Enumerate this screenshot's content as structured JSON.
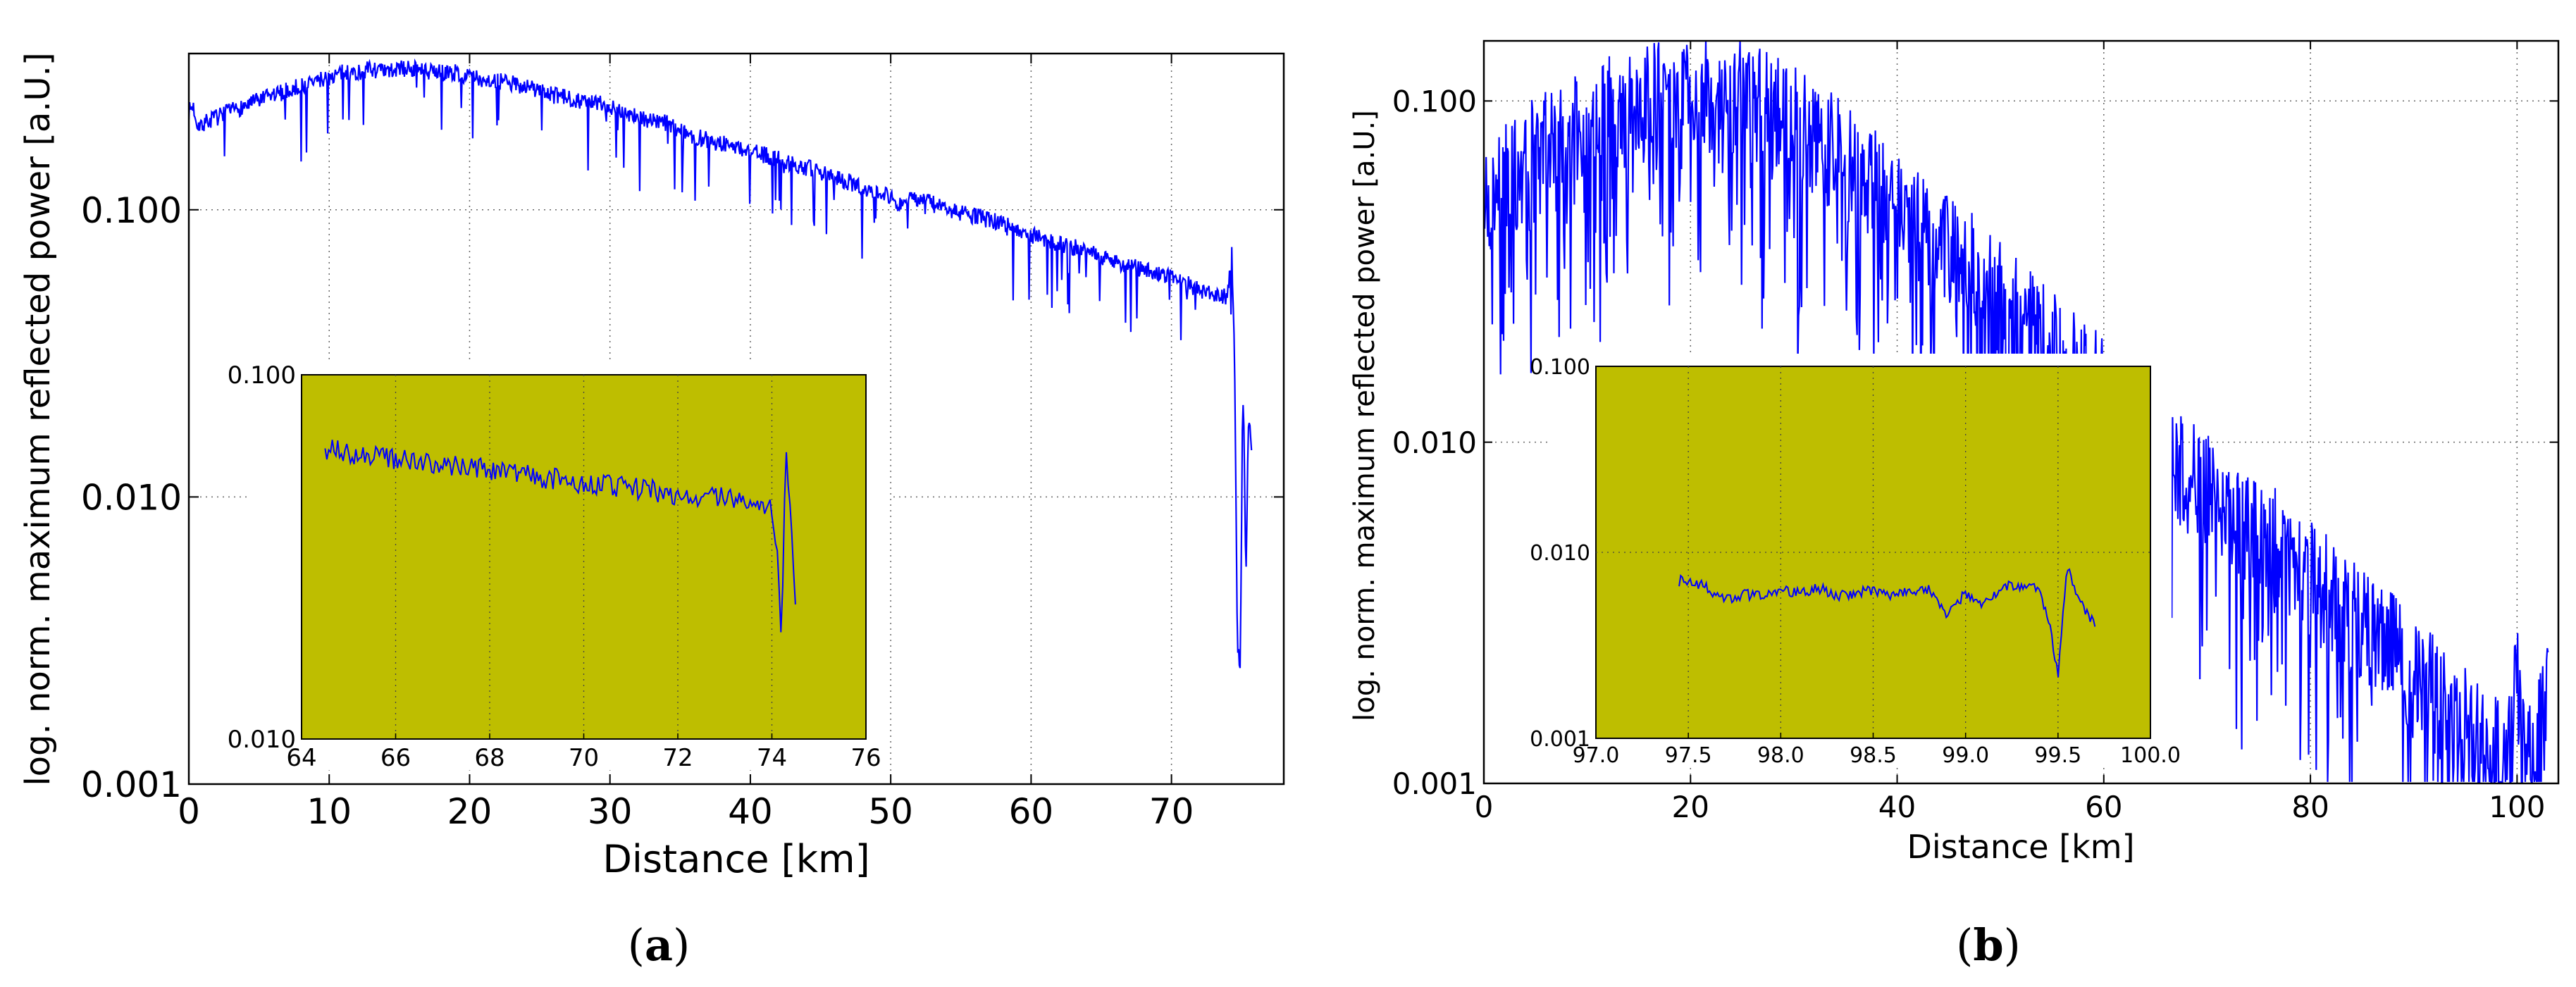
{
  "chart_data": [
    {
      "id": "a",
      "type": "line",
      "caption_letter": "a",
      "xlabel": "Distance [km]",
      "ylabel": "log. norm. maximum reflected power [a.U.]",
      "yscale": "log",
      "xlim": [
        0,
        78
      ],
      "ylim": [
        0.001,
        0.35
      ],
      "xticks": [
        0,
        10,
        20,
        30,
        40,
        50,
        60,
        70
      ],
      "xtick_labels": [
        "0",
        "10",
        "20",
        "30",
        "40",
        "50",
        "60",
        "70"
      ],
      "yticks": [
        0.001,
        0.01,
        0.1
      ],
      "ytick_labels": [
        "0.001",
        "0.010",
        "0.100"
      ],
      "grid": true,
      "line_color": "#0000ff",
      "series": [
        {
          "name": "trace",
          "x": [
            0,
            0.3,
            0.6,
            1,
            2,
            3,
            4,
            5,
            6,
            7,
            8,
            9,
            10,
            11,
            12,
            13,
            14,
            15,
            16,
            17,
            18,
            19,
            20,
            22,
            24,
            26,
            28,
            30,
            32,
            34,
            36,
            38,
            40,
            42,
            44,
            46,
            48,
            49.5,
            50.5,
            52,
            54,
            56,
            58,
            60,
            62,
            64,
            66,
            68,
            70,
            72,
            73,
            74,
            74.3,
            74.5,
            74.7,
            74.9,
            75.1,
            75.3,
            75.5,
            75.7
          ],
          "y": [
            0.22,
            0.23,
            0.2,
            0.2,
            0.21,
            0.22,
            0.23,
            0.24,
            0.25,
            0.26,
            0.27,
            0.28,
            0.29,
            0.3,
            0.3,
            0.31,
            0.3,
            0.31,
            0.31,
            0.3,
            0.3,
            0.3,
            0.29,
            0.28,
            0.27,
            0.25,
            0.24,
            0.23,
            0.21,
            0.2,
            0.18,
            0.17,
            0.16,
            0.15,
            0.14,
            0.13,
            0.12,
            0.115,
            0.105,
            0.11,
            0.1,
            0.095,
            0.09,
            0.082,
            0.076,
            0.072,
            0.066,
            0.062,
            0.058,
            0.053,
            0.05,
            0.05,
            0.07,
            0.03,
            0.003,
            0.0025,
            0.03,
            0.005,
            0.02,
            0.015
          ]
        }
      ],
      "inset": {
        "background": "#bebe00",
        "xlim": [
          64,
          76
        ],
        "ylim": [
          0.01,
          0.1
        ],
        "xticks": [
          64,
          66,
          68,
          70,
          72,
          74,
          76
        ],
        "xtick_labels": [
          "64",
          "66",
          "68",
          "70",
          "72",
          "74",
          "76"
        ],
        "yticks": [
          0.01,
          0.1
        ],
        "ytick_labels": [
          "0.010",
          "0.100"
        ],
        "x": [
          64.5,
          64.7,
          65,
          65.5,
          66,
          66.5,
          67,
          67.5,
          68,
          68.5,
          69,
          69.5,
          70,
          70.5,
          71,
          71.5,
          72,
          72.5,
          73,
          73.5,
          73.8,
          74,
          74.1,
          74.2,
          74.3,
          74.4,
          74.5
        ],
        "y": [
          0.059,
          0.063,
          0.061,
          0.06,
          0.059,
          0.057,
          0.056,
          0.056,
          0.055,
          0.054,
          0.052,
          0.052,
          0.05,
          0.05,
          0.049,
          0.048,
          0.047,
          0.046,
          0.046,
          0.045,
          0.044,
          0.043,
          0.035,
          0.02,
          0.06,
          0.04,
          0.025
        ]
      }
    },
    {
      "id": "b",
      "type": "line",
      "caption_letter": "b",
      "xlabel": "Distance [km]",
      "ylabel": "log. norm. maximum reflected power [a.U.]",
      "yscale": "log",
      "xlim": [
        0,
        104
      ],
      "ylim": [
        0.001,
        0.15
      ],
      "xticks": [
        0,
        20,
        40,
        60,
        80,
        100
      ],
      "xtick_labels": [
        "0",
        "20",
        "40",
        "60",
        "80",
        "100"
      ],
      "yticks": [
        0.001,
        0.01,
        0.1
      ],
      "ytick_labels": [
        "0.001",
        "0.010",
        "0.100"
      ],
      "grid": true,
      "line_color": "#0000ff",
      "series": [
        {
          "name": "trace",
          "x": [
            0,
            2,
            4,
            6,
            8,
            10,
            12,
            14,
            16,
            18,
            20,
            22,
            24,
            26,
            28,
            30,
            32,
            34,
            36,
            38,
            40,
            42,
            44,
            46,
            48,
            50,
            52,
            54,
            56,
            58,
            60,
            62,
            64,
            66,
            68,
            70,
            72,
            74,
            76,
            78,
            80,
            82,
            84,
            86,
            88,
            90,
            92,
            94,
            96,
            98,
            99,
            100,
            101,
            102,
            103
          ],
          "y": [
            0.05,
            0.058,
            0.066,
            0.074,
            0.082,
            0.088,
            0.092,
            0.096,
            0.1,
            0.103,
            0.105,
            0.105,
            0.103,
            0.098,
            0.092,
            0.085,
            0.078,
            0.07,
            0.063,
            0.056,
            0.05,
            0.044,
            0.039,
            0.034,
            0.03,
            0.026,
            0.023,
            0.02,
            0.0175,
            0.0155,
            0.0137,
            0.012,
            0.0106,
            0.0094,
            0.0083,
            0.0074,
            0.0065,
            0.0058,
            0.0051,
            0.0045,
            0.004,
            0.0035,
            0.0031,
            0.0027,
            0.0024,
            0.0021,
            0.0018,
            0.0016,
            0.0014,
            0.0012,
            0.0011,
            0.002,
            0.0012,
            0.0015,
            0.0018
          ]
        }
      ],
      "inset": {
        "background": "#bebe00",
        "xlim": [
          97,
          100
        ],
        "ylim": [
          0.001,
          0.1
        ],
        "xticks": [
          97.0,
          97.5,
          98.0,
          98.5,
          99.0,
          99.5,
          100.0
        ],
        "xtick_labels": [
          "97.0",
          "97.5",
          "98.0",
          "98.5",
          "99.0",
          "99.5",
          "100.0"
        ],
        "yticks": [
          0.001,
          0.01,
          0.1
        ],
        "ytick_labels": [
          "0.001",
          "0.010",
          "0.100"
        ],
        "x": [
          97.45,
          97.5,
          97.6,
          97.7,
          97.8,
          97.9,
          98.0,
          98.1,
          98.2,
          98.3,
          98.4,
          98.5,
          98.6,
          98.7,
          98.8,
          98.9,
          99.0,
          99.1,
          99.2,
          99.3,
          99.4,
          99.45,
          99.5,
          99.55,
          99.6,
          99.65,
          99.7
        ],
        "y": [
          0.007,
          0.0072,
          0.0064,
          0.0056,
          0.006,
          0.0058,
          0.0062,
          0.006,
          0.0065,
          0.0058,
          0.006,
          0.0063,
          0.0059,
          0.0062,
          0.0064,
          0.0046,
          0.006,
          0.0052,
          0.0066,
          0.0067,
          0.0062,
          0.0042,
          0.0022,
          0.0085,
          0.006,
          0.0048,
          0.0041
        ]
      }
    }
  ]
}
